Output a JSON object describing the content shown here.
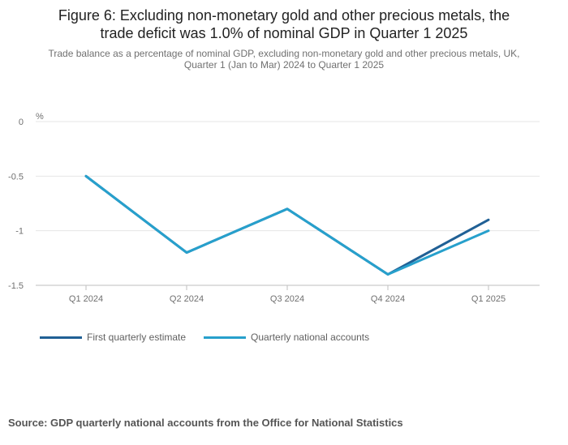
{
  "chart_data": {
    "type": "line",
    "title": "Figure 6: Excluding non-monetary gold and other precious metals, the trade deficit was 1.0% of nominal GDP in Quarter 1 2025",
    "title_lines": [
      "Figure 6: Excluding non-monetary gold and other precious metals, the",
      "trade deficit was 1.0% of nominal GDP in Quarter 1 2025"
    ],
    "subtitle_lines": [
      "Trade balance as a percentage of nominal GDP, excluding non-monetary gold and other precious metals, UK,",
      "Quarter 1 (Jan to Mar) 2024 to Quarter 1 2025"
    ],
    "ylabel": "%",
    "xlabel": "",
    "ylim": [
      -1.5,
      0
    ],
    "yticks": [
      0,
      -0.5,
      -1,
      -1.5
    ],
    "ytick_labels": [
      "0",
      "-0.5",
      "-1",
      "-1.5"
    ],
    "categories": [
      "Q1 2024",
      "Q2 2024",
      "Q3 2024",
      "Q4 2024",
      "Q1 2025"
    ],
    "grid": true,
    "legend_position": "bottom-left",
    "series": [
      {
        "name": "First quarterly estimate",
        "color": "#206095",
        "values": [
          -0.5,
          -1.2,
          -0.8,
          -1.4,
          -0.9
        ]
      },
      {
        "name": "Quarterly national accounts",
        "color": "#27a0cc",
        "values": [
          -0.5,
          -1.2,
          -0.8,
          -1.4,
          -1.0
        ]
      }
    ]
  },
  "source": "Source: GDP quarterly national accounts from the Office for National Statistics"
}
